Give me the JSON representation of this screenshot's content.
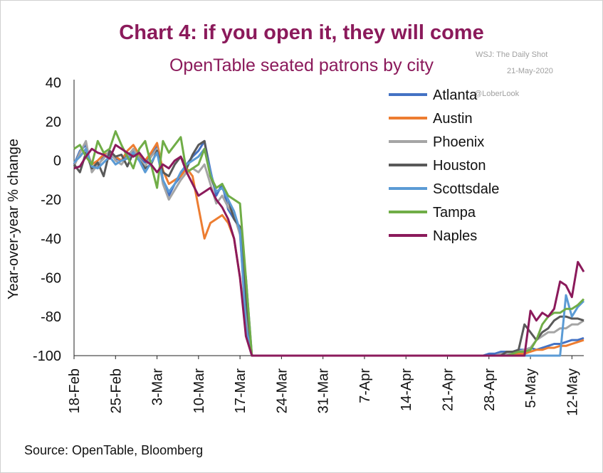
{
  "title": "Chart 4: if you open it, they will come",
  "subtitle": "OpenTable seated patrons by city",
  "watermark": {
    "line1": "WSJ: The Daily Shot",
    "line2": "21-May-2020",
    "line3": "@LoberLook"
  },
  "source": "Source: OpenTable, Bloomberg",
  "chart_data": {
    "type": "line",
    "ylabel": "Year-over-year % change",
    "ylim": [
      -100,
      40
    ],
    "yticks": [
      40,
      20,
      0,
      -20,
      -40,
      -60,
      -80,
      -100
    ],
    "x_start": "18-Feb",
    "x_end": "13-May",
    "xticks": [
      "18-Feb",
      "25-Feb",
      "3-Mar",
      "10-Mar",
      "17-Mar",
      "24-Mar",
      "31-Mar",
      "7-Apr",
      "14-Apr",
      "21-Apr",
      "28-Apr",
      "5-May",
      "12-May"
    ],
    "series": [
      {
        "name": "Atlanta",
        "color": "#4472c4",
        "values": [
          -2,
          5,
          8,
          -4,
          -3,
          2,
          3,
          1,
          0,
          3,
          5,
          2,
          -1,
          3,
          8,
          -10,
          -18,
          -12,
          -8,
          -2,
          2,
          5,
          10,
          -5,
          -18,
          -12,
          -25,
          -30,
          -35,
          -60,
          -100,
          -100,
          -100,
          -100,
          -100,
          -100,
          -100,
          -100,
          -100,
          -100,
          -100,
          -100,
          -100,
          -100,
          -100,
          -100,
          -100,
          -100,
          -100,
          -100,
          -100,
          -100,
          -100,
          -100,
          -100,
          -100,
          -100,
          -100,
          -100,
          -100,
          -100,
          -100,
          -100,
          -100,
          -100,
          -100,
          -100,
          -100,
          -100,
          -100,
          -99,
          -99,
          -98,
          -98,
          -98,
          -97,
          -97,
          -96,
          -97,
          -96,
          -95,
          -94,
          -94,
          -93,
          -92,
          -92,
          -91
        ]
      },
      {
        "name": "Austin",
        "color": "#ed7d31",
        "values": [
          -1,
          2,
          6,
          -2,
          0,
          3,
          4,
          2,
          0,
          5,
          8,
          3,
          0,
          4,
          9,
          -5,
          -12,
          -10,
          -8,
          -4,
          -8,
          -24,
          -40,
          -32,
          -30,
          -28,
          -32,
          -40,
          -60,
          -85,
          -100,
          -100,
          -100,
          -100,
          -100,
          -100,
          -100,
          -100,
          -100,
          -100,
          -100,
          -100,
          -100,
          -100,
          -100,
          -100,
          -100,
          -100,
          -100,
          -100,
          -100,
          -100,
          -100,
          -100,
          -100,
          -100,
          -100,
          -100,
          -100,
          -100,
          -100,
          -100,
          -100,
          -100,
          -100,
          -100,
          -100,
          -100,
          -100,
          -100,
          -100,
          -100,
          -100,
          -99,
          -99,
          -99,
          -99,
          -98,
          -97,
          -97,
          -96,
          -96,
          -95,
          -95,
          -94,
          -93,
          -92
        ]
      },
      {
        "name": "Phoenix",
        "color": "#a5a5a5",
        "values": [
          -3,
          4,
          10,
          -6,
          -2,
          1,
          5,
          0,
          -2,
          2,
          6,
          1,
          -3,
          2,
          6,
          -12,
          -20,
          -15,
          -10,
          -6,
          -4,
          -6,
          -2,
          -12,
          -22,
          -18,
          -24,
          -28,
          -38,
          -80,
          -100,
          -100,
          -100,
          -100,
          -100,
          -100,
          -100,
          -100,
          -100,
          -100,
          -100,
          -100,
          -100,
          -100,
          -100,
          -100,
          -100,
          -100,
          -100,
          -100,
          -100,
          -100,
          -100,
          -100,
          -100,
          -100,
          -100,
          -100,
          -100,
          -100,
          -100,
          -100,
          -100,
          -100,
          -100,
          -100,
          -100,
          -100,
          -100,
          -100,
          -100,
          -100,
          -99,
          -99,
          -98,
          -98,
          -97,
          -96,
          -92,
          -90,
          -88,
          -88,
          -86,
          -86,
          -84,
          -84,
          -82
        ]
      },
      {
        "name": "Houston",
        "color": "#595959",
        "values": [
          -2,
          -6,
          4,
          -4,
          -1,
          -8,
          5,
          2,
          3,
          -3,
          4,
          0,
          -4,
          -2,
          5,
          -6,
          -8,
          -2,
          2,
          -4,
          3,
          8,
          10,
          -8,
          -16,
          -14,
          -20,
          -30,
          -34,
          -70,
          -100,
          -100,
          -100,
          -100,
          -100,
          -100,
          -100,
          -100,
          -100,
          -100,
          -100,
          -100,
          -100,
          -100,
          -100,
          -100,
          -100,
          -100,
          -100,
          -100,
          -100,
          -100,
          -100,
          -100,
          -100,
          -100,
          -100,
          -100,
          -100,
          -100,
          -100,
          -100,
          -100,
          -100,
          -100,
          -100,
          -100,
          -100,
          -100,
          -100,
          -100,
          -100,
          -100,
          -98,
          -98,
          -97,
          -84,
          -88,
          -92,
          -88,
          -86,
          -82,
          -80,
          -80,
          -81,
          -81,
          -82
        ]
      },
      {
        "name": "Scottsdale",
        "color": "#5b9bd5",
        "values": [
          -1,
          2,
          6,
          -3,
          -4,
          -1,
          2,
          -2,
          0,
          1,
          4,
          0,
          -6,
          -1,
          4,
          -10,
          -16,
          -12,
          -6,
          -2,
          0,
          2,
          6,
          -6,
          -16,
          -14,
          -20,
          -26,
          -36,
          -85,
          -100,
          -100,
          -100,
          -100,
          -100,
          -100,
          -100,
          -100,
          -100,
          -100,
          -100,
          -100,
          -100,
          -100,
          -100,
          -100,
          -100,
          -100,
          -100,
          -100,
          -100,
          -100,
          -100,
          -100,
          -100,
          -100,
          -100,
          -100,
          -100,
          -100,
          -100,
          -100,
          -100,
          -100,
          -100,
          -100,
          -100,
          -100,
          -100,
          -100,
          -100,
          -100,
          -100,
          -100,
          -100,
          -100,
          -100,
          -100,
          -100,
          -100,
          -100,
          -100,
          -100,
          -69,
          -80,
          -75,
          -72
        ]
      },
      {
        "name": "Tampa",
        "color": "#70ad47",
        "values": [
          6,
          8,
          2,
          -2,
          10,
          4,
          6,
          15,
          8,
          2,
          -4,
          6,
          10,
          -2,
          -14,
          10,
          4,
          8,
          12,
          -6,
          -4,
          -2,
          6,
          -8,
          -14,
          -12,
          -18,
          -20,
          -22,
          -60,
          -100,
          -100,
          -100,
          -100,
          -100,
          -100,
          -100,
          -100,
          -100,
          -100,
          -100,
          -100,
          -100,
          -100,
          -100,
          -100,
          -100,
          -100,
          -100,
          -100,
          -100,
          -100,
          -100,
          -100,
          -100,
          -100,
          -100,
          -100,
          -100,
          -100,
          -100,
          -100,
          -100,
          -100,
          -100,
          -100,
          -100,
          -100,
          -100,
          -100,
          -100,
          -100,
          -100,
          -100,
          -99,
          -98,
          -98,
          -97,
          -92,
          -84,
          -80,
          -78,
          -78,
          -76,
          -76,
          -74,
          -71
        ]
      },
      {
        "name": "Naples",
        "color": "#8b1a5b",
        "values": [
          -4,
          -3,
          2,
          6,
          4,
          3,
          1,
          8,
          6,
          4,
          2,
          4,
          0,
          -2,
          -6,
          -2,
          -4,
          0,
          2,
          -6,
          -12,
          -18,
          -16,
          -14,
          -20,
          -24,
          -30,
          -40,
          -60,
          -90,
          -100,
          -100,
          -100,
          -100,
          -100,
          -100,
          -100,
          -100,
          -100,
          -100,
          -100,
          -100,
          -100,
          -100,
          -100,
          -100,
          -100,
          -100,
          -100,
          -100,
          -100,
          -100,
          -100,
          -100,
          -100,
          -100,
          -100,
          -100,
          -100,
          -100,
          -100,
          -100,
          -100,
          -100,
          -100,
          -100,
          -100,
          -100,
          -100,
          -100,
          -100,
          -100,
          -100,
          -100,
          -100,
          -100,
          -100,
          -77,
          -82,
          -78,
          -80,
          -76,
          -62,
          -64,
          -70,
          -52,
          -57
        ]
      }
    ]
  }
}
